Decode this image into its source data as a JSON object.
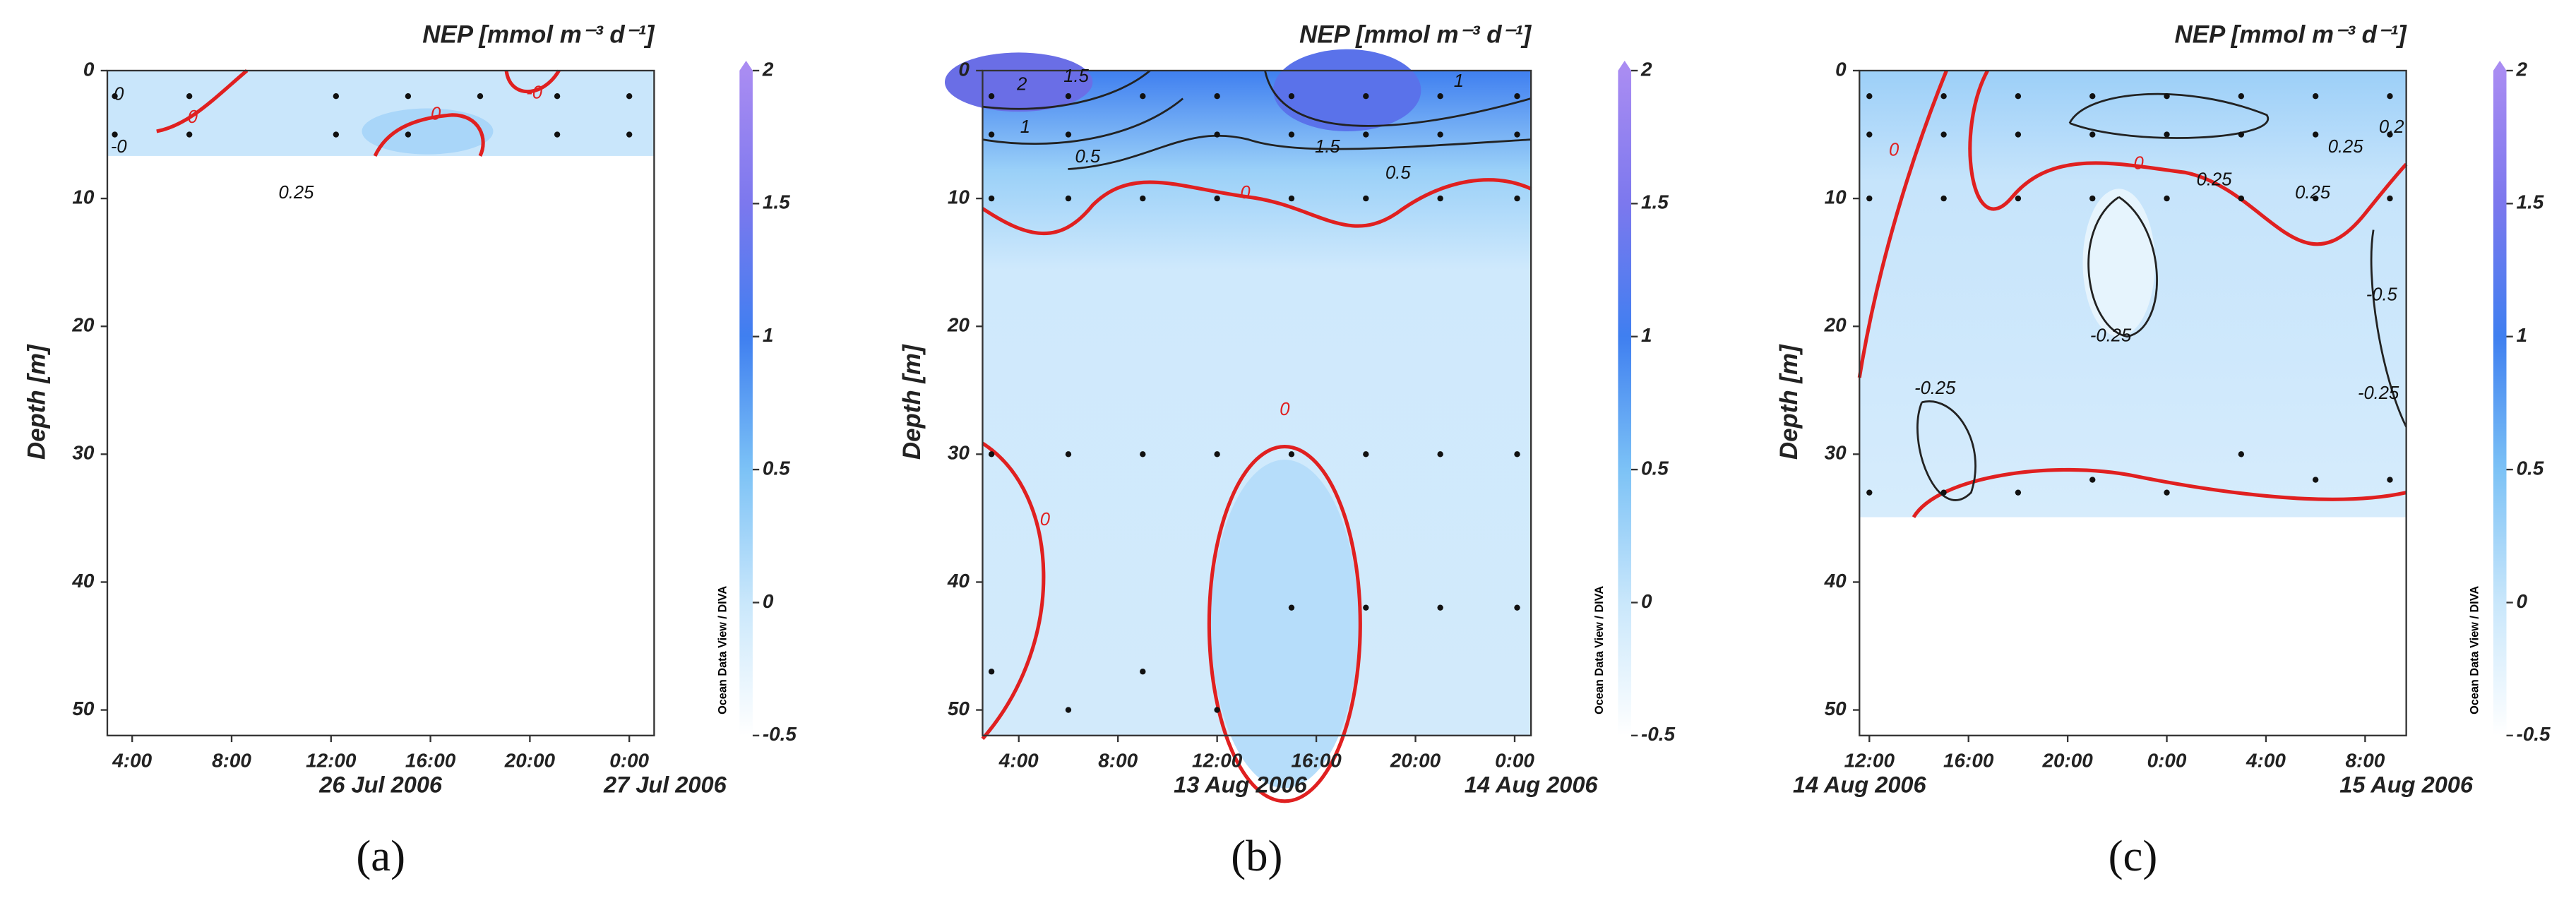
{
  "chart_data": [
    {
      "type": "contour",
      "panel_label": "(a)",
      "title": "NEP [mmol m⁻³ d⁻¹]",
      "y_label": "Depth [m]",
      "ylim": [
        0,
        52
      ],
      "yticks": [
        0,
        10,
        20,
        30,
        40,
        50
      ],
      "y_inverted": true,
      "xlim": [
        3,
        25
      ],
      "xticks": [
        {
          "value": 4,
          "label": "4:00"
        },
        {
          "value": 8,
          "label": "8:00"
        },
        {
          "value": 12,
          "label": "12:00"
        },
        {
          "value": 16,
          "label": "16:00"
        },
        {
          "value": 20,
          "label": "20:00"
        },
        {
          "value": 24,
          "label": "0:00"
        }
      ],
      "dates": [
        "26 Jul 2006",
        "27 Jul 2006"
      ],
      "colorbar": {
        "lim": [
          -0.5,
          2
        ],
        "ticks": [
          -0.5,
          0,
          0.5,
          1,
          1.5,
          2
        ]
      },
      "credit": "Ocean Data View / DIVA",
      "contour_labels": [
        "0",
        "0",
        "0",
        "0.25",
        "-0",
        "-0"
      ],
      "stations": {
        "x": [
          3.3,
          6.3,
          12.2,
          15.1,
          18,
          21.1,
          24,
          3.3,
          6.3,
          12.2,
          15.1,
          21.1,
          24
        ],
        "y": [
          2,
          2,
          2,
          2,
          2,
          2,
          2,
          5,
          5,
          5,
          5,
          5,
          5
        ]
      }
    },
    {
      "type": "contour",
      "panel_label": "(b)",
      "title": "NEP [mmol m⁻³ d⁻¹]",
      "y_label": "Depth [m]",
      "ylim": [
        0,
        52
      ],
      "yticks": [
        0,
        10,
        20,
        30,
        40,
        50
      ],
      "y_inverted": true,
      "xlim": [
        2.54,
        24.66
      ],
      "xticks": [
        {
          "value": 4,
          "label": "4:00"
        },
        {
          "value": 8,
          "label": "8:00"
        },
        {
          "value": 12,
          "label": "12:00"
        },
        {
          "value": 16,
          "label": "16:00"
        },
        {
          "value": 20,
          "label": "20:00"
        },
        {
          "value": 24,
          "label": "0:00"
        }
      ],
      "dates": [
        "13 Aug 2006",
        "14 Aug 2006"
      ],
      "colorbar": {
        "lim": [
          -0.5,
          2
        ],
        "ticks": [
          -0.5,
          0,
          0.5,
          1,
          1.5,
          2
        ]
      },
      "credit": "Ocean Data View / DIVA",
      "contour_labels": [
        "2",
        "1.5",
        "1",
        "0.5",
        "1.5",
        "1",
        "0.5",
        "0",
        "0",
        "0"
      ],
      "stations": {
        "x": [
          2.9,
          6,
          9,
          12,
          15,
          18,
          21,
          24.1,
          2.9,
          6,
          12,
          15,
          18,
          21,
          24.1,
          2.9,
          6,
          9,
          12,
          15,
          18,
          21,
          24.1,
          2.9,
          6,
          9,
          12,
          15,
          18,
          21,
          24.1,
          15,
          18,
          21,
          24.1,
          2.9,
          9,
          6,
          12
        ],
        "y": [
          2,
          2,
          2,
          2,
          2,
          2,
          2,
          2,
          5,
          5,
          5,
          5,
          5,
          5,
          5,
          10,
          10,
          10,
          10,
          10,
          10,
          10,
          10,
          30,
          30,
          30,
          30,
          30,
          30,
          30,
          30,
          42,
          42,
          42,
          42,
          47,
          47,
          50,
          50
        ]
      }
    },
    {
      "type": "contour",
      "panel_label": "(c)",
      "title": "NEP [mmol m⁻³ d⁻¹]",
      "y_label": "Depth [m]",
      "ylim": [
        0,
        52
      ],
      "yticks": [
        0,
        10,
        20,
        30,
        40,
        50
      ],
      "y_inverted": true,
      "xlim": [
        11.6,
        33.66
      ],
      "xticks": [
        {
          "value": 12,
          "label": "12:00"
        },
        {
          "value": 16,
          "label": "16:00"
        },
        {
          "value": 20,
          "label": "20:00"
        },
        {
          "value": 24,
          "label": "0:00"
        },
        {
          "value": 28,
          "label": "4:00"
        },
        {
          "value": 32,
          "label": "8:00"
        }
      ],
      "dates": [
        "14 Aug 2006",
        "15 Aug 2006"
      ],
      "colorbar": {
        "lim": [
          -0.5,
          2
        ],
        "ticks": [
          -0.5,
          0,
          0.5,
          1,
          1.5,
          2
        ]
      },
      "credit": "Ocean Data View / DIVA",
      "contour_labels": [
        "0",
        "0",
        "0.25",
        "0.25",
        "0.25",
        "0.2",
        "-0.25",
        "-0.25",
        "-0.5",
        "-0.25"
      ],
      "stations": {
        "x": [
          12,
          15,
          18,
          21,
          24,
          27,
          30,
          33,
          12,
          15,
          18,
          21,
          24,
          27,
          30,
          33,
          12,
          15,
          18,
          21,
          24,
          27,
          30,
          33,
          27,
          21,
          30,
          33,
          12,
          15,
          18,
          24
        ],
        "y": [
          2,
          2,
          2,
          2,
          2,
          2,
          2,
          2,
          5,
          5,
          5,
          5,
          5,
          5,
          5,
          5,
          10,
          10,
          10,
          10,
          10,
          10,
          10,
          10,
          30,
          32,
          32,
          32,
          33,
          33,
          33,
          33
        ]
      }
    }
  ]
}
